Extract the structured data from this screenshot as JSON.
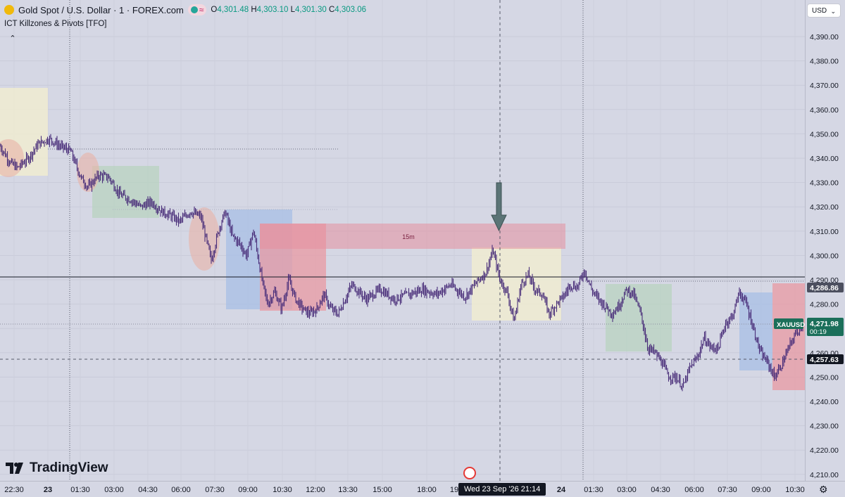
{
  "header": {
    "symbol_title": "Gold Spot / U.S. Dollar · 1 · FOREX.com",
    "open_label": "O",
    "open": "4,301.48",
    "high_label": "H",
    "high": "4,303.10",
    "low_label": "L",
    "low": "4,301.30",
    "close_label": "C",
    "close": "4,303.06",
    "pill_icon": "≈",
    "indicator": "ICT Killzones & Pivots [TFO]",
    "collapse_icon": "⌃",
    "currency": "USD",
    "currency_chevron": "⌄"
  },
  "branding": {
    "logo_text": "TradingView",
    "logo_icon": "tv-logo-icon"
  },
  "colors": {
    "background": "#d5d7e4",
    "candle": "#4a2f7a",
    "asia_zone": "#f1eecf",
    "london_zone": "#b6d3bd",
    "ny_zone": "#a7bfe6",
    "pm_zone": "#e89aa3",
    "fvg_zone": "#e58f9e",
    "last_price": "#1b6f5a",
    "accent": "#2962ff"
  },
  "crosshair": {
    "date_label": "Wed 23 Sep '26   21:14",
    "settings_icon": "gear-icon"
  },
  "annotations": {
    "fvg_label": "15m",
    "arrow": "down-arrow"
  },
  "price_labels": {
    "symbol": "XAUUSD",
    "last_price": "4,271.98",
    "countdown": "00:19",
    "crosshair_price": "4,257.63",
    "high_price": "4,286.86"
  },
  "chart_data": {
    "type": "candlestick",
    "title": "Gold Spot / U.S. Dollar · 1 · FOREX.com",
    "y_ticks": [
      "4,390.00",
      "4,380.00",
      "4,370.00",
      "4,360.00",
      "4,350.00",
      "4,340.00",
      "4,330.00",
      "4,320.00",
      "4,310.00",
      "4,300.00",
      "4,290.00",
      "4,280.00",
      "4,270.00",
      "4,260.00",
      "4,250.00",
      "4,240.00",
      "4,230.00",
      "4,220.00",
      "4,210.00"
    ],
    "y_values": [
      4390,
      4380,
      4370,
      4360,
      4350,
      4340,
      4330,
      4320,
      4310,
      4300,
      4290,
      4280,
      4270,
      4260,
      4250,
      4240,
      4230,
      4220,
      4210
    ],
    "x_ticks": [
      "22:30",
      "23",
      "01:30",
      "03:00",
      "04:30",
      "06:00",
      "07:30",
      "09:00",
      "10:30",
      "12:00",
      "13:30",
      "15:00",
      "18:00",
      "19",
      "24",
      "01:30",
      "03:00",
      "04:30",
      "06:00",
      "07:30",
      "09:00",
      "10:30"
    ],
    "ylim": [
      4205,
      4405
    ],
    "path_t": [
      0,
      15,
      25,
      40,
      55,
      70,
      85,
      100,
      115,
      125,
      140,
      155,
      170,
      185,
      200,
      215,
      230,
      245,
      255,
      270,
      285,
      300,
      312,
      320,
      330,
      340,
      350,
      360,
      372,
      380,
      390,
      400,
      410,
      420,
      430,
      440,
      450,
      460,
      470,
      480,
      490,
      500,
      510,
      520,
      540,
      560,
      580,
      600,
      620,
      640,
      660,
      680,
      690,
      700,
      710,
      720,
      730,
      740,
      750,
      760,
      770,
      780,
      790,
      800,
      810,
      820,
      830,
      840,
      850,
      860,
      870,
      880,
      890,
      900,
      910,
      920,
      930,
      940,
      950,
      960,
      970,
      980,
      990,
      1000,
      1010,
      1020,
      1030,
      1040,
      1050,
      1060,
      1070,
      1080,
      1090,
      1100,
      1110,
      1120,
      1130,
      1140
    ],
    "path_y": [
      4345,
      4338,
      4336,
      4340,
      4346,
      4348,
      4345,
      4343,
      4332,
      4328,
      4333,
      4332,
      4325,
      4323,
      4320,
      4322,
      4318,
      4316,
      4314,
      4318,
      4316,
      4298,
      4312,
      4318,
      4308,
      4305,
      4300,
      4310,
      4290,
      4280,
      4285,
      4278,
      4290,
      4282,
      4278,
      4276,
      4278,
      4284,
      4278,
      4276,
      4282,
      4288,
      4285,
      4282,
      4286,
      4282,
      4284,
      4286,
      4284,
      4288,
      4283,
      4290,
      4293,
      4302,
      4290,
      4285,
      4273,
      4288,
      4292,
      4286,
      4284,
      4276,
      4280,
      4283,
      4288,
      4287,
      4294,
      4286,
      4282,
      4279,
      4276,
      4280,
      4286,
      4284,
      4276,
      4262,
      4260,
      4256,
      4250,
      4250,
      4246,
      4254,
      4258,
      4266,
      4262,
      4262,
      4272,
      4275,
      4285,
      4280,
      4270,
      4260,
      4256,
      4250,
      4255,
      4262,
      4268,
      4272
    ]
  }
}
